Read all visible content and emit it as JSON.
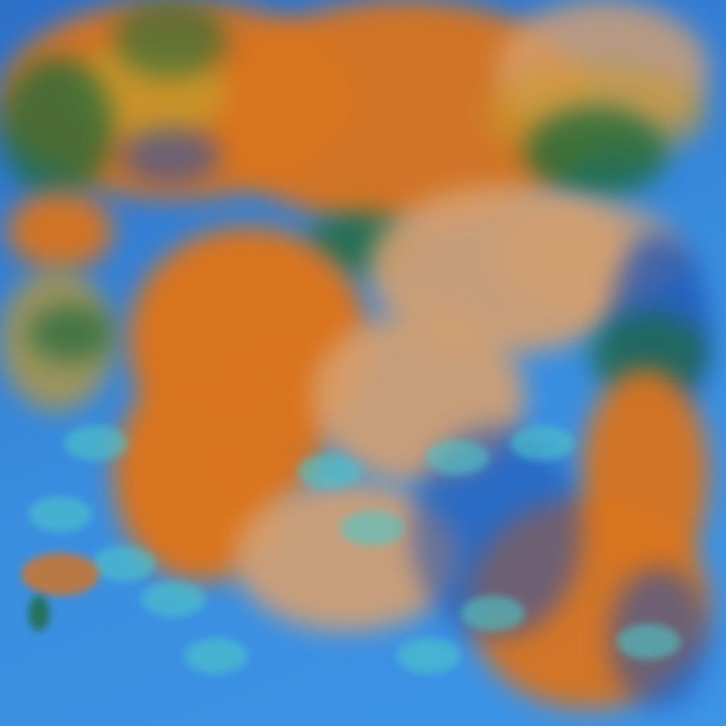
{
  "image": {
    "kind": "false-color satellite imagery",
    "colors": {
      "ocean": "#3a8ee0",
      "deep_blue": "#1c4fb0",
      "cloud_orange": "#d9741e",
      "cloud_tan": "#d6a070",
      "vegetation_green": "#1f6a3a",
      "cyan_edges": "#4fc8c8",
      "ochre": "#c89a2a"
    }
  }
}
